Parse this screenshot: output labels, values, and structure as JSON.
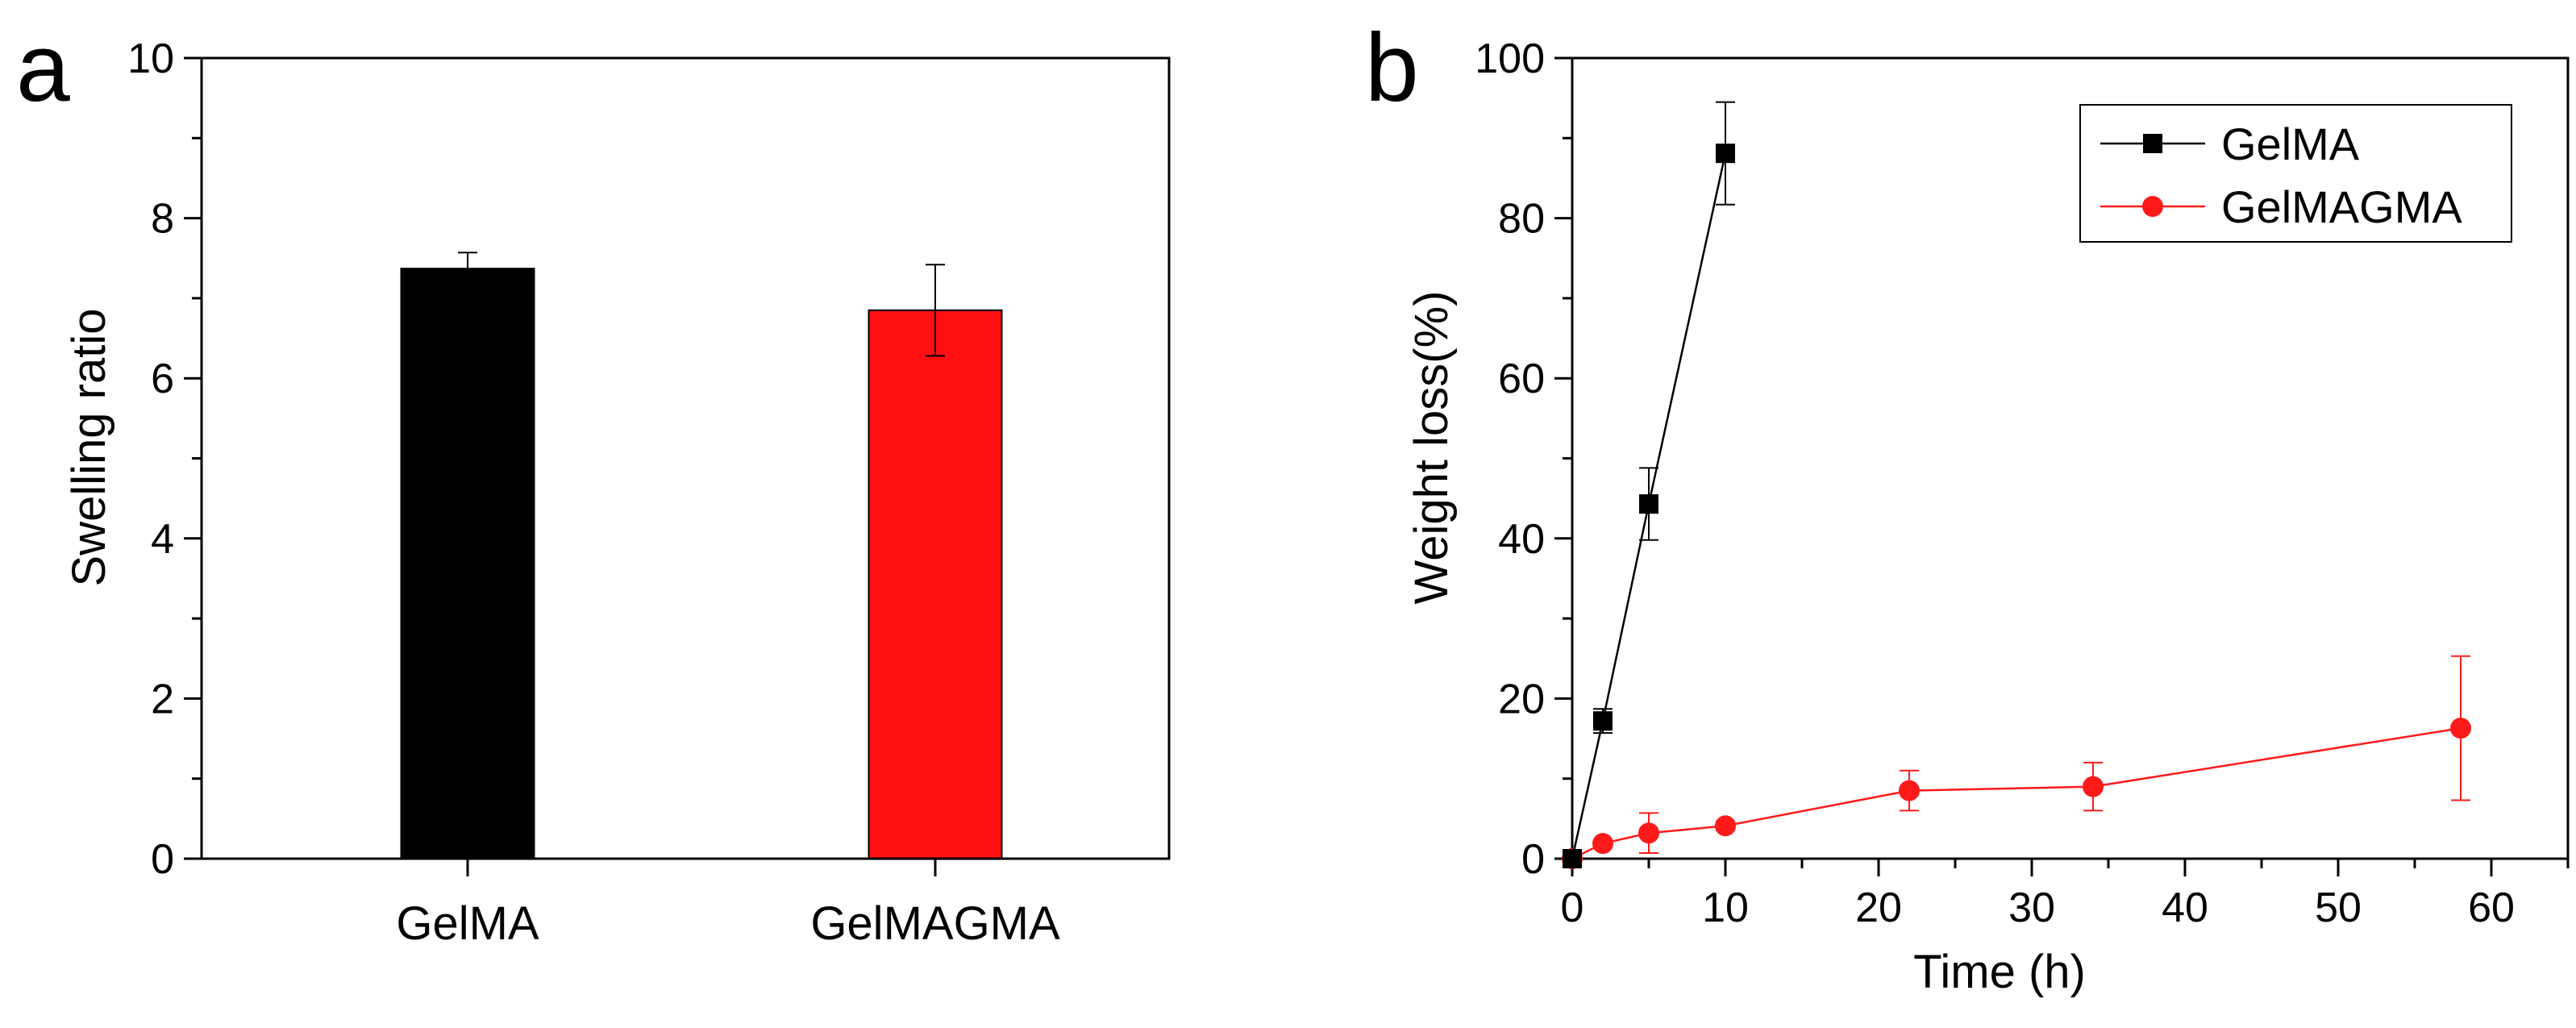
{
  "chart_data": [
    {
      "panel": "a",
      "type": "bar",
      "title": "",
      "xlabel": "",
      "ylabel": "Swelling ratio",
      "ylim": [
        0,
        10
      ],
      "yticks": [
        0,
        2,
        4,
        6,
        8,
        10
      ],
      "categories": [
        "GelMA",
        "GelMAGMA"
      ],
      "values": [
        7.37,
        6.85
      ],
      "errors": [
        0.2,
        0.57
      ],
      "colors": [
        "#000000",
        "#ff1010"
      ]
    },
    {
      "panel": "b",
      "type": "line",
      "title": "",
      "xlabel": "Time (h)",
      "ylabel": "Weight loss(%)",
      "xlim": [
        0,
        65
      ],
      "ylim": [
        0,
        100
      ],
      "xticks": [
        0,
        10,
        20,
        30,
        40,
        50,
        60
      ],
      "yticks": [
        0,
        20,
        40,
        60,
        80,
        100
      ],
      "legend_position": "top-right",
      "series": [
        {
          "name": "GelMA",
          "color": "#000000",
          "marker": "square",
          "x": [
            0,
            2,
            5,
            10
          ],
          "y": [
            0,
            17.2,
            44.3,
            88.1
          ],
          "errors": [
            0,
            1.5,
            4.5,
            6.4
          ]
        },
        {
          "name": "GelMAGMA",
          "color": "#ff1a1a",
          "marker": "circle",
          "x": [
            0,
            2,
            5,
            10,
            22,
            34,
            58
          ],
          "y": [
            0,
            1.9,
            3.2,
            4.1,
            8.5,
            9.0,
            16.3
          ],
          "errors": [
            0,
            0.4,
            2.5,
            0.5,
            2.5,
            3.0,
            9.0
          ]
        }
      ]
    }
  ]
}
